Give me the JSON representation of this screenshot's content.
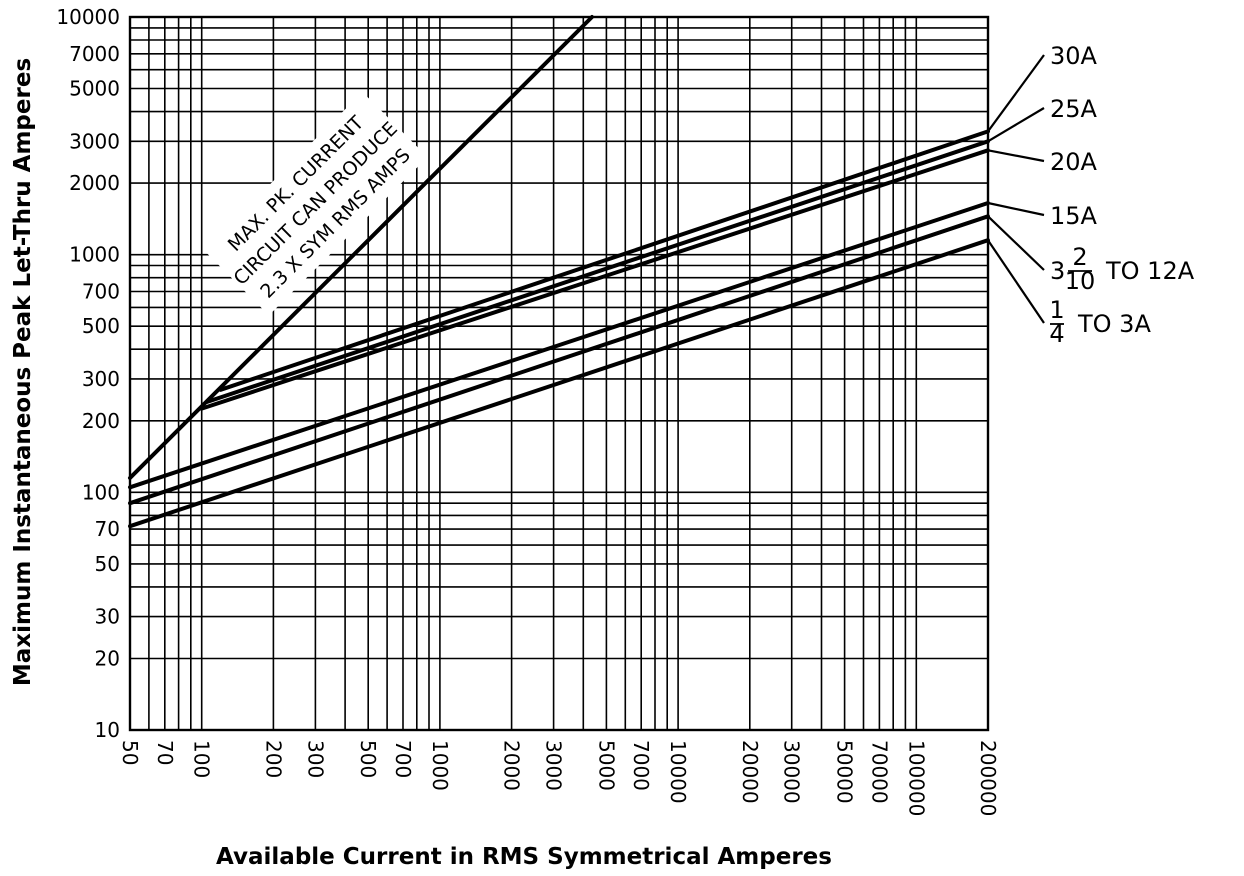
{
  "chart_data": {
    "type": "line",
    "xscale": "log",
    "yscale": "log",
    "xlim": [
      50,
      200000
    ],
    "ylim": [
      10,
      10000
    ],
    "grid": true,
    "xlabel": "Available Current in RMS Symmetrical Amperes",
    "ylabel": "Maximum Instantaneous Peak Let-Thru Amperes",
    "x_ticks": [
      "50",
      "70",
      "100",
      "200",
      "300",
      "500",
      "700",
      "1000",
      "2000",
      "3000",
      "5000",
      "7000",
      "10000",
      "20000",
      "30000",
      "50000",
      "70000",
      "100000",
      "200000"
    ],
    "y_ticks": [
      "10",
      "20",
      "30",
      "50",
      "70",
      "100",
      "200",
      "300",
      "500",
      "700",
      "1000",
      "2000",
      "3000",
      "5000",
      "7000",
      "10000"
    ],
    "x_tick_values": [
      50,
      70,
      100,
      200,
      300,
      500,
      700,
      1000,
      2000,
      3000,
      5000,
      7000,
      10000,
      20000,
      30000,
      50000,
      70000,
      100000,
      200000
    ],
    "y_tick_values": [
      10,
      20,
      30,
      50,
      70,
      100,
      200,
      300,
      500,
      700,
      1000,
      2000,
      3000,
      5000,
      7000,
      10000
    ],
    "annotation": {
      "lines": [
        "MAX. PK. CURRENT",
        "CIRCUIT CAN PRODUCE",
        "2.3 X SYM RMS AMPS"
      ],
      "x": [
        50,
        4350
      ],
      "y": [
        115,
        10000
      ]
    },
    "series": [
      {
        "name": "30A",
        "x": [
          120,
          200000
        ],
        "y": [
          270,
          3300
        ]
      },
      {
        "name": "25A",
        "x": [
          105,
          200000
        ],
        "y": [
          240,
          3000
        ]
      },
      {
        "name": "20A",
        "x": [
          100,
          200000
        ],
        "y": [
          225,
          2750
        ]
      },
      {
        "name": "15A",
        "x": [
          50,
          200000
        ],
        "y": [
          105,
          1650
        ]
      },
      {
        "name": "3 2/10 TO 12A",
        "x": [
          50,
          200000
        ],
        "y": [
          90,
          1450
        ]
      },
      {
        "name": "1/4 TO 3A",
        "x": [
          50,
          200000
        ],
        "y": [
          72,
          1150
        ]
      }
    ],
    "series_labels": [
      {
        "text": "30A"
      },
      {
        "text": "25A"
      },
      {
        "text": "20A"
      },
      {
        "text": "15A"
      },
      {
        "whole": "3",
        "num": "2",
        "den": "10",
        "text": "TO 12A"
      },
      {
        "num": "1",
        "den": "4",
        "text": "TO 3A"
      }
    ]
  }
}
